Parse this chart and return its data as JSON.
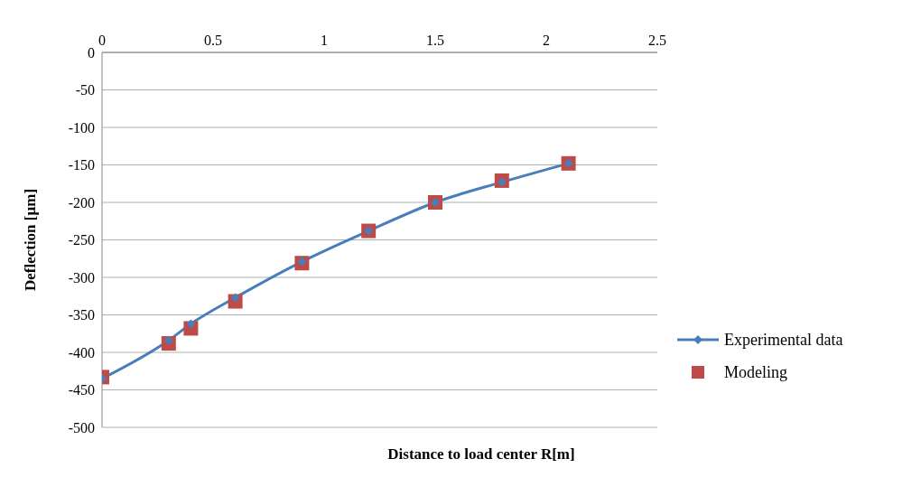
{
  "chart_data": {
    "type": "line",
    "xlabel": "Distance to load center R[m]",
    "ylabel": "Deflection [µm]",
    "series": [
      {
        "name": "Experimental data",
        "color": "#4a7ebb",
        "marker": "diamond",
        "x": [
          0,
          0.3,
          0.4,
          0.6,
          0.9,
          1.2,
          1.5,
          1.8,
          2.1
        ],
        "values": [
          -435,
          -384,
          -362,
          -327,
          -279,
          -238,
          -200,
          -173,
          -148
        ]
      },
      {
        "name": "Modeling",
        "type": "scatter",
        "color": "#be4b48",
        "marker": "square",
        "x": [
          0,
          0.3,
          0.4,
          0.6,
          0.9,
          1.2,
          1.5,
          1.8,
          2.1
        ],
        "values": [
          -433,
          -388,
          -368,
          -332,
          -281,
          -238,
          -200,
          -171,
          -148
        ]
      }
    ],
    "xlim": [
      0,
      2.5
    ],
    "xticks": [
      0,
      0.5,
      1,
      1.5,
      2,
      2.5
    ],
    "ylim": [
      -500,
      0
    ],
    "yticks": [
      -500,
      -450,
      -400,
      -350,
      -300,
      -250,
      -200,
      -150,
      -100,
      -50,
      0
    ],
    "grid": "y",
    "legend": "right"
  }
}
